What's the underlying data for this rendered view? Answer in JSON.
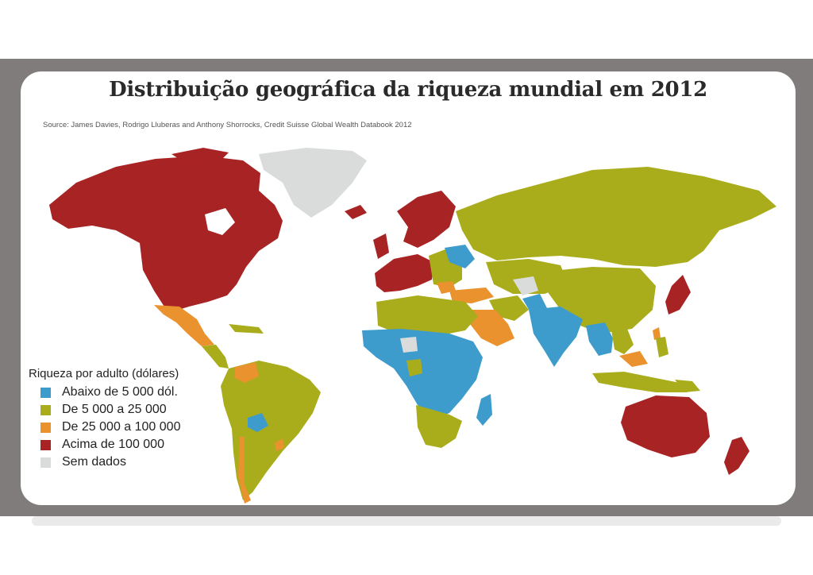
{
  "map": {
    "title": "Distribuição geográfica da riqueza mundial em 2012",
    "source": "Source: James Davies, Rodrigo Lluberas and Anthony Shorrocks, Credit Suisse Global Wealth Databook 2012",
    "legend": {
      "title": "Riqueza por adulto (dólares)",
      "items": [
        {
          "label": "Abaixo de 5 000 dól.",
          "color": "#3e9ccc"
        },
        {
          "label": "De 5 000 a 25 000",
          "color": "#a9ad1c"
        },
        {
          "label": "De 25 000 a 100 000",
          "color": "#e9922e"
        },
        {
          "label": "Acima de 100 000",
          "color": "#a82323"
        },
        {
          "label": "Sem dados",
          "color": "#dadcdc"
        }
      ]
    }
  }
}
